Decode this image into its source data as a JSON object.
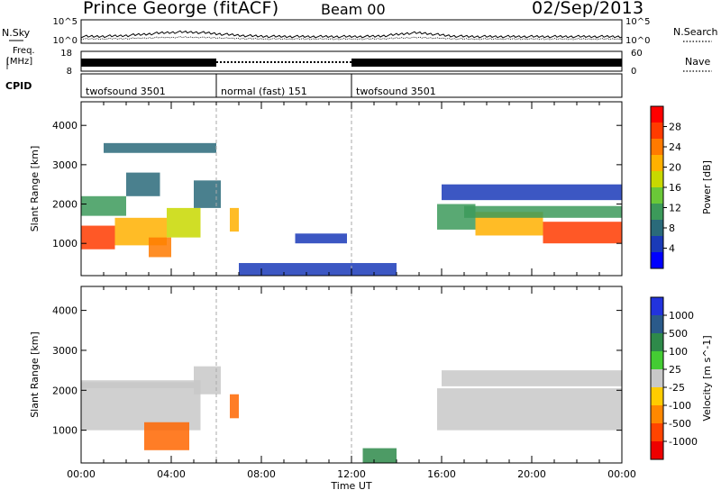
{
  "header": {
    "station": "Prince George (fitACF)",
    "beam": "Beam 00",
    "date": "02/Sep/2013"
  },
  "noise_panel": {
    "left_label": "N.Sky",
    "right_label": "N.Search",
    "left_ticks": [
      "10^5",
      "10^0"
    ],
    "right_ticks": [
      "10^5",
      "10^0"
    ]
  },
  "freq_panel": {
    "left_label_1": "Freq.",
    "left_label_2": "[MHz]",
    "right_label": "Nave",
    "left_ticks": [
      "18",
      "8"
    ],
    "right_ticks": [
      "60",
      "0"
    ]
  },
  "cpid_panel": {
    "label": "CPID",
    "segments": [
      {
        "name": "twofsound 3501",
        "start": 0,
        "end": 6
      },
      {
        "name": "normal (fast) 151",
        "start": 6,
        "end": 12
      },
      {
        "name": "twofsound 3501",
        "start": 12,
        "end": 24
      }
    ]
  },
  "colorbars": {
    "power": {
      "label": "Power [dB]",
      "ticks": [
        "28",
        "24",
        "20",
        "16",
        "12",
        "8",
        "4"
      ],
      "colors": [
        "#ff0000",
        "#ff3b00",
        "#ff7a00",
        "#ffb000",
        "#c8d800",
        "#6ac838",
        "#3c9a5a",
        "#2a6a7a",
        "#1a3ab8",
        "#0000ff"
      ]
    },
    "velocity": {
      "label": "Velocity [m s^-1]",
      "ticks": [
        "1000",
        "500",
        "100",
        "25",
        "-25",
        "-100",
        "-500",
        "-1000"
      ],
      "colors": [
        "#2233dd",
        "#2a5a8a",
        "#2e8a4a",
        "#44cc33",
        "#c8c8c8",
        "#ffcc00",
        "#ff8800",
        "#ff4400",
        "#ee0000"
      ]
    }
  },
  "chart_data": [
    {
      "type": "heatmap",
      "panel": "power",
      "ylabel": "Slant Range [km]",
      "ylim": [
        180,
        4600
      ],
      "yticks": [
        "1000",
        "2000",
        "3000",
        "4000"
      ],
      "xlim": [
        0,
        24
      ],
      "bands": [
        {
          "t0": 0.0,
          "t1": 1.5,
          "r0": 850,
          "r1": 1450,
          "value": 26
        },
        {
          "t0": 1.5,
          "t1": 3.8,
          "r0": 950,
          "r1": 1650,
          "value": 22
        },
        {
          "t0": 3.8,
          "t1": 5.3,
          "r0": 1150,
          "r1": 1900,
          "value": 18
        },
        {
          "t0": 3.0,
          "t1": 4.0,
          "r0": 650,
          "r1": 1150,
          "value": 24
        },
        {
          "t0": 0.0,
          "t1": 2.0,
          "r0": 1700,
          "r1": 2200,
          "value": 12
        },
        {
          "t0": 2.0,
          "t1": 3.5,
          "r0": 2200,
          "r1": 2800,
          "value": 8
        },
        {
          "t0": 5.0,
          "t1": 6.2,
          "r0": 1900,
          "r1": 2600,
          "value": 10
        },
        {
          "t0": 6.6,
          "t1": 7.0,
          "r0": 1300,
          "r1": 1900,
          "value": 20
        },
        {
          "t0": 9.5,
          "t1": 11.8,
          "r0": 1000,
          "r1": 1250,
          "value": 7
        },
        {
          "t0": 7.0,
          "t1": 14.0,
          "r0": 190,
          "r1": 500,
          "value": 6
        },
        {
          "t0": 15.8,
          "t1": 17.5,
          "r0": 1350,
          "r1": 2000,
          "value": 12
        },
        {
          "t0": 17.5,
          "t1": 20.5,
          "r0": 1200,
          "r1": 1800,
          "value": 22
        },
        {
          "t0": 20.5,
          "t1": 24.0,
          "r0": 1000,
          "r1": 1550,
          "value": 26
        },
        {
          "t0": 17.0,
          "t1": 24.0,
          "r0": 1650,
          "r1": 1950,
          "value": 12
        },
        {
          "t0": 16.0,
          "t1": 24.0,
          "r0": 2100,
          "r1": 2500,
          "value": 7
        },
        {
          "t0": 1.0,
          "t1": 6.0,
          "r0": 3300,
          "r1": 3550,
          "value": 8
        }
      ]
    },
    {
      "type": "heatmap",
      "panel": "velocity",
      "ylabel": "Slant Range [km]",
      "xlabel": "Time UT",
      "ylim": [
        180,
        4600
      ],
      "yticks": [
        "1000",
        "2000",
        "3000",
        "4000"
      ],
      "xticks": [
        "00:00",
        "04:00",
        "08:00",
        "12:00",
        "16:00",
        "20:00",
        "00:00"
      ],
      "xlim": [
        0,
        24
      ],
      "bands": [
        {
          "t0": 0.0,
          "t1": 5.3,
          "r0": 1000,
          "r1": 2250,
          "value": 0
        },
        {
          "t0": 5.0,
          "t1": 6.2,
          "r0": 1900,
          "r1": 2600,
          "value": 0
        },
        {
          "t0": 2.8,
          "t1": 4.8,
          "r0": 500,
          "r1": 1200,
          "value": -500
        },
        {
          "t0": 6.6,
          "t1": 7.0,
          "r0": 1300,
          "r1": 1900,
          "value": -500
        },
        {
          "t0": 12.5,
          "t1": 14.0,
          "r0": 180,
          "r1": 550,
          "value": 100
        },
        {
          "t0": 15.8,
          "t1": 24.0,
          "r0": 1000,
          "r1": 2050,
          "value": 0
        },
        {
          "t0": 16.0,
          "t1": 24.0,
          "r0": 2100,
          "r1": 2500,
          "value": 0
        },
        {
          "t0": 0.0,
          "t1": 5.0,
          "r0": 2050,
          "r1": 2200,
          "value": 0
        }
      ]
    }
  ]
}
